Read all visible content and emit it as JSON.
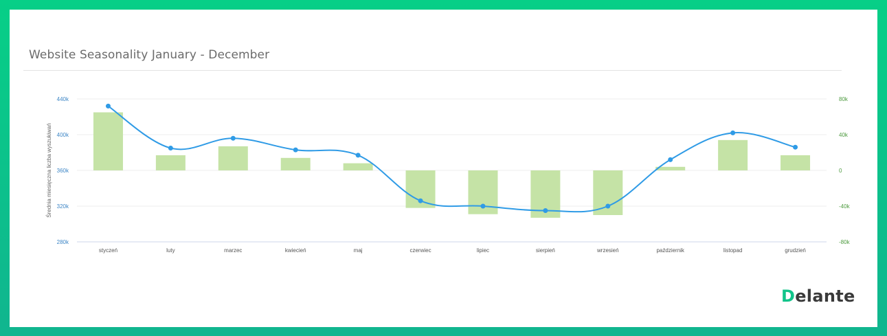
{
  "page": {
    "title": "Website Seasonality January - December",
    "brand_logo": "Delante"
  },
  "colors": {
    "frame_top": "#07cf87",
    "frame_bottom": "#10b58f",
    "bar": "#c5e3a6",
    "line": "#2f9be6",
    "left_axis": "#3d86c6",
    "right_axis": "#4c9a3e"
  },
  "chart_data": {
    "type": "bar+line",
    "title": "Website Seasonality January - December",
    "categories": [
      "styczeń",
      "luty",
      "marzec",
      "kwiecień",
      "maj",
      "czerwiec",
      "lipiec",
      "sierpień",
      "wrzesień",
      "październik",
      "listopad",
      "grudzień"
    ],
    "ylabel_left": "Średnia miesięczna liczba wyszukiwań",
    "ylim_left": [
      280000,
      440000
    ],
    "yticks_left": [
      "440k",
      "400k",
      "360k",
      "320k",
      "280k"
    ],
    "ylim_right": [
      -80000,
      80000
    ],
    "yticks_right": [
      "80k",
      "40k",
      "0",
      "-40k",
      "-80k"
    ],
    "grid": true,
    "legend": "none",
    "series": [
      {
        "type": "bar",
        "axis": "right",
        "values": [
          65000,
          17000,
          27000,
          14000,
          8000,
          -42000,
          -49000,
          -53000,
          -50000,
          4000,
          34000,
          17000
        ]
      },
      {
        "type": "line",
        "axis": "left",
        "values": [
          432000,
          385000,
          396000,
          383000,
          377000,
          326000,
          320000,
          315000,
          320000,
          372000,
          402000,
          386000
        ]
      }
    ]
  }
}
